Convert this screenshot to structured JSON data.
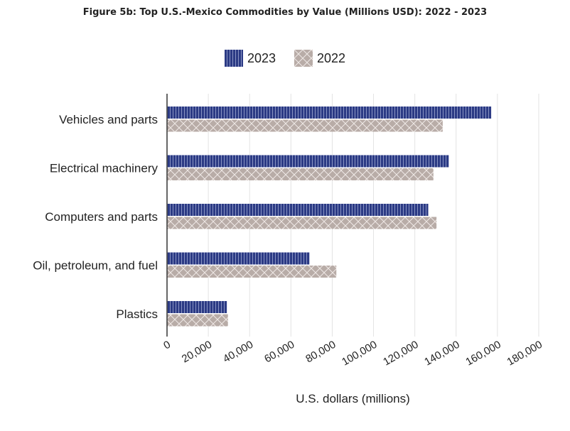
{
  "chart_data": {
    "type": "bar",
    "orientation": "horizontal",
    "title": "Figure 5b: Top U.S.-Mexico Commodities by Value (Millions USD): 2022 - 2023",
    "xlabel": "U.S. dollars (millions)",
    "ylabel": "",
    "categories": [
      "Vehicles and parts",
      "Electrical machinery",
      "Computers and parts",
      "Oil, petroleum, and fuel",
      "Plastics"
    ],
    "series": [
      {
        "name": "2023",
        "color": "#2b3a84",
        "pattern": "vertical-stripes",
        "values": [
          157000,
          136500,
          126500,
          69000,
          29000
        ]
      },
      {
        "name": "2022",
        "color": "#b8aca7",
        "pattern": "crosshatch",
        "values": [
          133500,
          129000,
          130500,
          82000,
          29500
        ]
      }
    ],
    "xlim": [
      0,
      180000
    ],
    "xticks": [
      0,
      20000,
      40000,
      60000,
      80000,
      100000,
      120000,
      140000,
      160000,
      180000
    ],
    "xtick_labels": [
      "0",
      "20,000",
      "40,000",
      "60,000",
      "80,000",
      "100,000",
      "120,000",
      "140,000",
      "160,000",
      "180,000"
    ],
    "grid": true,
    "legend_position": "top-center"
  }
}
